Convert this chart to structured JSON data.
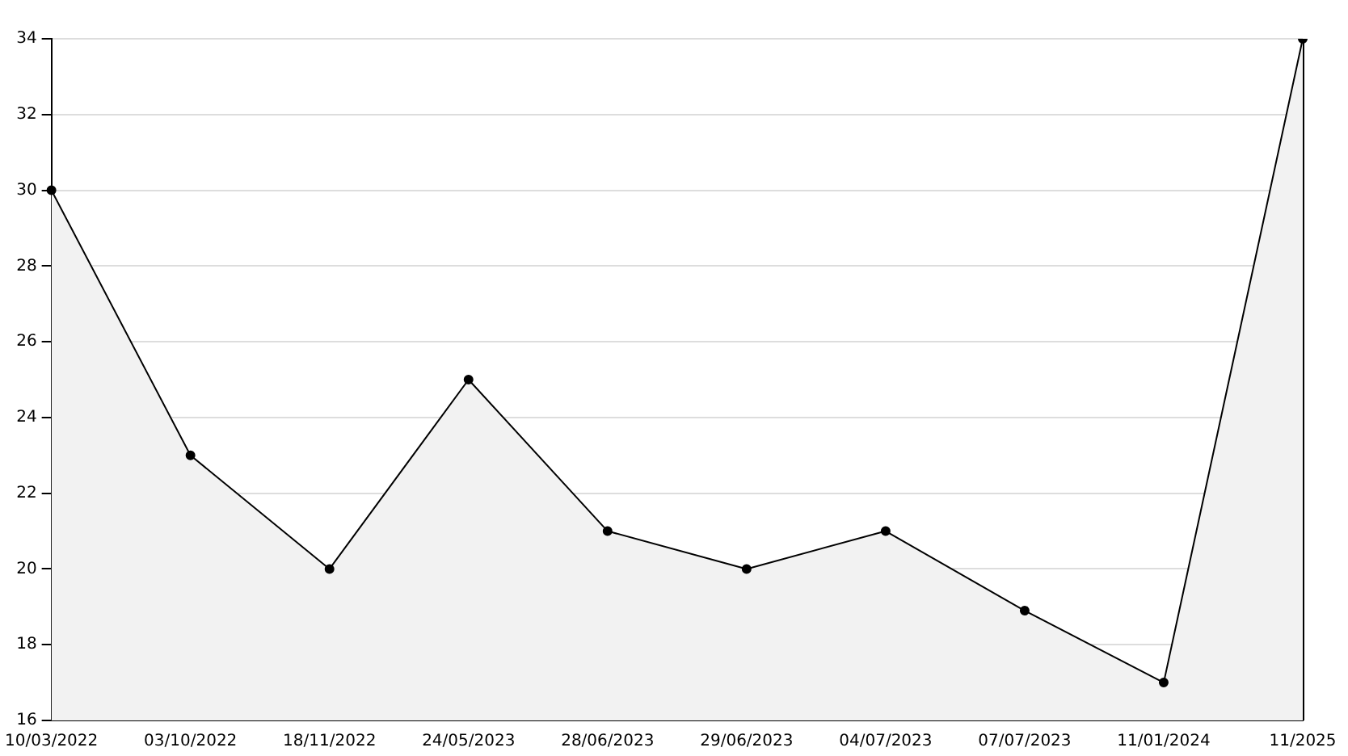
{
  "chart_data": {
    "type": "area",
    "categories": [
      "10/03/2022",
      "03/10/2022",
      "18/11/2022",
      "24/05/2023",
      "28/06/2023",
      "29/06/2023",
      "04/07/2023",
      "07/07/2023",
      "11/01/2024",
      "11/2025"
    ],
    "series": [
      {
        "color": "#000000",
        "values": [
          30,
          23,
          20,
          25,
          21,
          20,
          21,
          18.9,
          17,
          34
        ]
      }
    ],
    "ylim": [
      16,
      34
    ],
    "yticks": [
      16,
      18,
      20,
      22,
      24,
      26,
      28,
      30,
      32,
      34
    ],
    "grid": "y",
    "marker": "circle",
    "line_style": "solid"
  }
}
